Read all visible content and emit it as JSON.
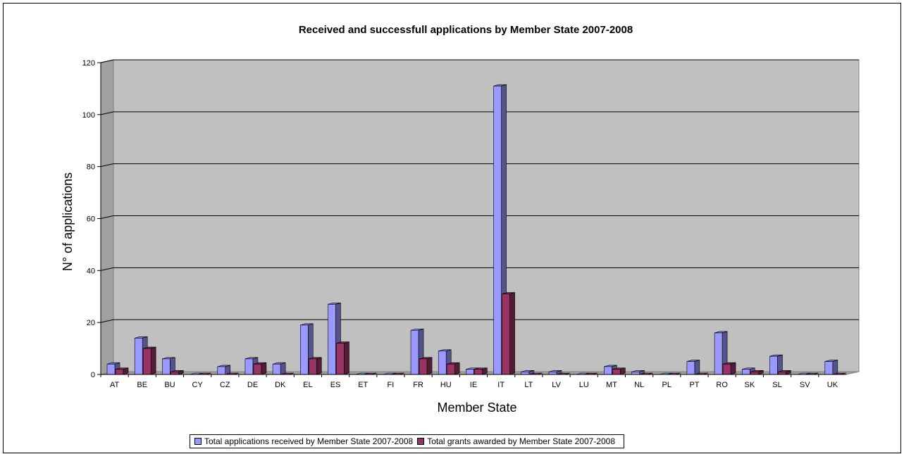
{
  "chart_data": {
    "type": "bar",
    "title": "Received and successfull applications by Member State 2007-2008",
    "xlabel": "Member State",
    "ylabel": "N° of applications",
    "ylim": [
      0,
      120
    ],
    "yticks": [
      0,
      20,
      40,
      60,
      80,
      100,
      120
    ],
    "grid": true,
    "legend_position": "bottom",
    "categories": [
      "AT",
      "BE",
      "BU",
      "CY",
      "CZ",
      "DE",
      "DK",
      "EL",
      "ES",
      "ET",
      "FI",
      "FR",
      "HU",
      "IE",
      "IT",
      "LT",
      "LV",
      "LU",
      "MT",
      "NL",
      "PL",
      "PT",
      "RO",
      "SK",
      "SL",
      "SV",
      "UK"
    ],
    "series": [
      {
        "name": "Total applications received by Member State 2007-2008",
        "color": "#9999ff",
        "values": [
          4,
          14,
          6,
          0,
          3,
          6,
          4,
          19,
          27,
          0,
          0,
          17,
          9,
          2,
          111,
          1,
          1,
          0,
          3,
          1,
          0,
          5,
          16,
          2,
          7,
          0,
          5
        ]
      },
      {
        "name": "Total grants awarded by Member State 2007-2008",
        "color": "#993366",
        "values": [
          2,
          10,
          1,
          0,
          0,
          4,
          0,
          6,
          12,
          0,
          0,
          6,
          4,
          2,
          31,
          0,
          0,
          0,
          2,
          0,
          0,
          0,
          4,
          1,
          1,
          0,
          0
        ]
      }
    ]
  }
}
